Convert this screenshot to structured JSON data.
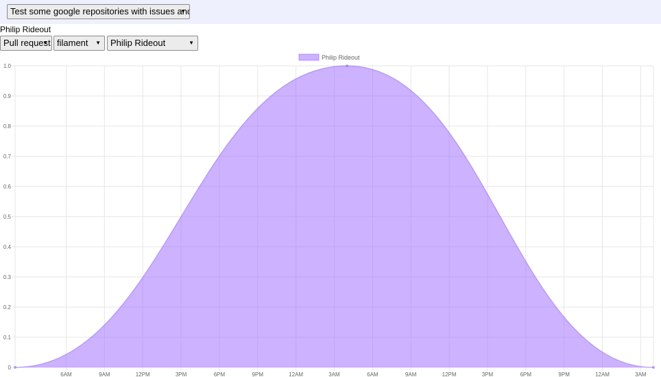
{
  "header": {
    "repo_select": "Test some google repositories with issues and PR"
  },
  "filters": {
    "person_title": "Philip Rideout",
    "type_select": "Pull request",
    "project_select": "filament",
    "author_select": "Philip Rideout"
  },
  "chart_data": {
    "type": "area",
    "title": "",
    "xlabel": "",
    "ylabel": "",
    "legend_position": "top-center",
    "grid": true,
    "ylim": [
      0,
      1
    ],
    "yticks": [
      "0",
      "0.1",
      "0.2",
      "0.3",
      "0.4",
      "0.5",
      "0.6",
      "0.7",
      "0.8",
      "0.9",
      "1.0"
    ],
    "xticks": [
      "6AM",
      "9AM",
      "12PM",
      "3PM",
      "6PM",
      "9PM",
      "12AM",
      "3AM",
      "6AM",
      "9AM",
      "12PM",
      "3PM",
      "6PM",
      "9PM",
      "12AM",
      "3AM"
    ],
    "series": [
      {
        "name": "Philip Rideout",
        "color": "#9966ff",
        "points": [
          {
            "x": "2AM",
            "y": 0
          },
          {
            "x": "4AM",
            "y": 1
          },
          {
            "x": "4AM (+2 days)",
            "y": 0
          }
        ]
      }
    ]
  }
}
